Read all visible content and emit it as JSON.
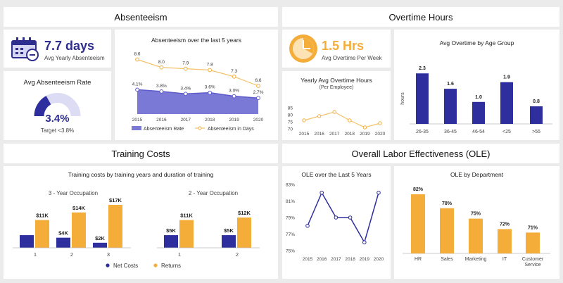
{
  "sections": {
    "absenteeism": "Absenteeism",
    "overtime": "Overtime Hours",
    "training": "Training Costs",
    "ole": "Overall Labor Effectiveness  (OLE)"
  },
  "kpis": {
    "absent_days": {
      "value": "7.7 days",
      "label": "Avg Yearly Absenteeism"
    },
    "absent_rate": {
      "title": "Avg Absenteeism Rate",
      "value": "3.4%",
      "target": "Target <3.8%",
      "fraction": 0.34
    },
    "overtime": {
      "value": "1.5 Hrs",
      "label": "Avg Overtime Per Week"
    }
  },
  "colors": {
    "navy": "#2e2e9e",
    "orange": "#f5ad3a",
    "lavender": "#7b79d6",
    "light": "#dcdcf5"
  },
  "chart_data": [
    {
      "id": "absent5",
      "type": "area",
      "title": "Absenteeism over the last 5 years",
      "x": [
        "2015",
        "2016",
        "2017",
        "2018",
        "2019",
        "2020"
      ],
      "series": [
        {
          "name": "Absenteeism Rate",
          "values": [
            4.1,
            3.8,
            3.4,
            3.6,
            3.0,
            2.7
          ],
          "labels": [
            "4.1%",
            "3.8%",
            "3.4%",
            "3.6%",
            "3.0%",
            "2.7%"
          ]
        },
        {
          "name": "Absenteeism in Days",
          "values": [
            8.6,
            8.0,
            7.9,
            7.8,
            7.3,
            6.6
          ],
          "labels": [
            "8.6",
            "8.0",
            "7.9",
            "7.8",
            "7.3",
            "6.6"
          ]
        }
      ]
    },
    {
      "id": "yearly_ot",
      "type": "line",
      "title": "Yearly Avg Overtime Hours",
      "subtitle": "(Per Employee)",
      "x": [
        "2015",
        "2016",
        "2017",
        "2018",
        "2019",
        "2020"
      ],
      "values": [
        76,
        79,
        82,
        76,
        71,
        74
      ],
      "ylim": [
        70,
        85
      ],
      "yticks": [
        "70",
        "75",
        "80",
        "85"
      ]
    },
    {
      "id": "ot_age",
      "type": "bar",
      "title": "Avg Overtime by Age Group",
      "ylabel": "hours",
      "categories": [
        "26-35",
        "36-45",
        "46-54",
        "<25",
        ">55"
      ],
      "values": [
        2.3,
        1.6,
        1.0,
        1.9,
        0.8
      ],
      "labels": [
        "2.3",
        "1.6",
        "1.0",
        "1.9",
        "0.8"
      ]
    },
    {
      "id": "training",
      "type": "bar",
      "title": "Training costs by training years and duration of training",
      "legend": [
        "Net Costs",
        "Returns"
      ],
      "groups": [
        {
          "title": "3 - Year Occupation",
          "categories": [
            "1",
            "2",
            "3"
          ],
          "net": [
            5,
            4,
            2
          ],
          "net_labels": [
            "",
            "$4K",
            "$2K"
          ],
          "returns": [
            11,
            14,
            17
          ],
          "returns_labels": [
            "$11K",
            "$14K",
            "$17K"
          ]
        },
        {
          "title": "2 - Year Occupation",
          "categories": [
            "1",
            "2"
          ],
          "net": [
            5,
            5
          ],
          "net_labels": [
            "$5K",
            "$5K"
          ],
          "returns": [
            11,
            12
          ],
          "returns_labels": [
            "$11K",
            "$12K"
          ]
        }
      ]
    },
    {
      "id": "ole5",
      "type": "line",
      "title": "OLE over the Last 5 Years",
      "x": [
        "2015",
        "2016",
        "2017",
        "2018",
        "2019",
        "2020"
      ],
      "values": [
        78,
        82,
        79,
        79,
        76,
        82
      ],
      "ylim": [
        75,
        83
      ],
      "yticks": [
        "75%",
        "77%",
        "79%",
        "81%",
        "83%"
      ]
    },
    {
      "id": "ole_dept",
      "type": "bar",
      "title": "OLE by Department",
      "categories": [
        "HR",
        "Sales",
        "Marketing",
        "IT",
        "Customer Service"
      ],
      "values": [
        82,
        78,
        75,
        72,
        71
      ],
      "labels": [
        "82%",
        "78%",
        "75%",
        "72%",
        "71%"
      ]
    }
  ]
}
